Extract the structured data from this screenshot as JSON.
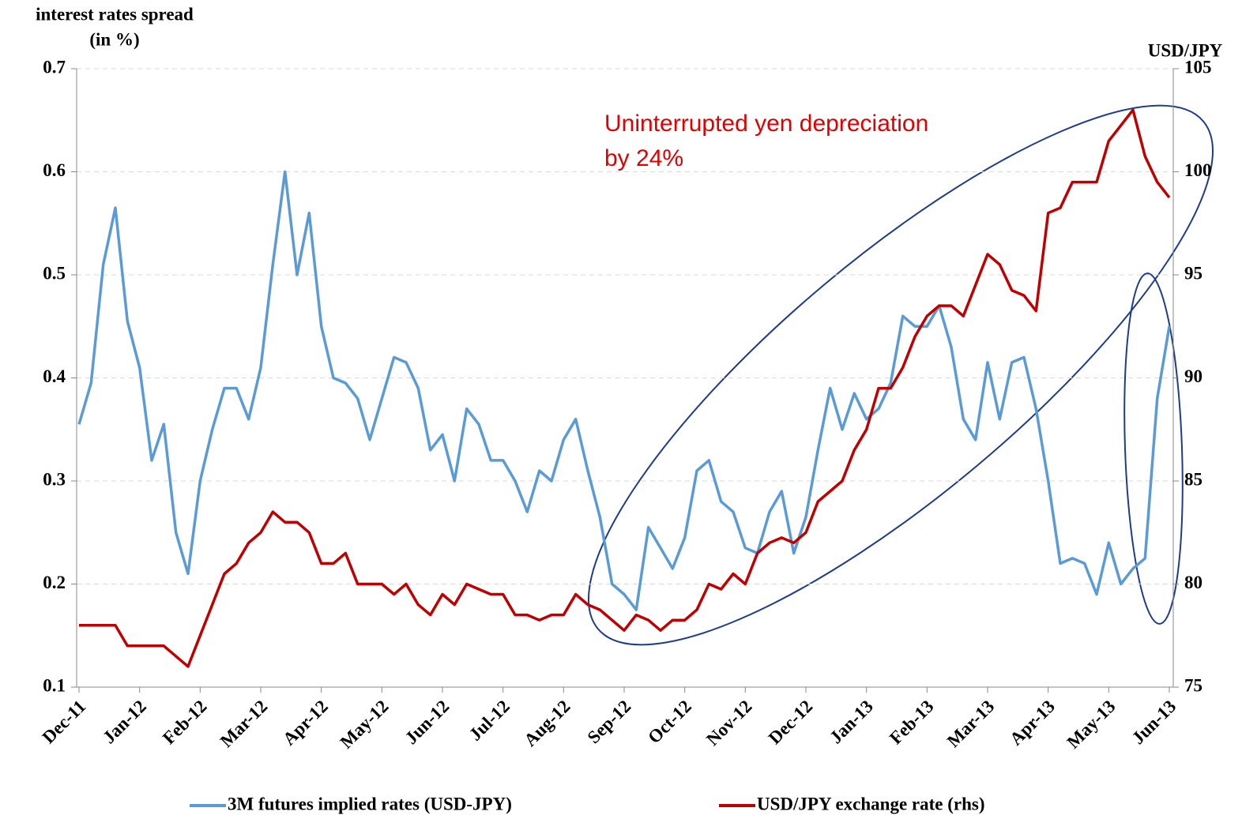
{
  "chart_data": {
    "type": "line",
    "ylabel": "interest rates spread",
    "ylabel_unit": "(in %)",
    "y2label": "USD/JPY",
    "annotation": [
      "Uninterrupted yen depreciation",
      "by 24%"
    ],
    "x": [
      0,
      0.2,
      0.4,
      0.6,
      0.8,
      1,
      1.2,
      1.4,
      1.6,
      1.8,
      2,
      2.2,
      2.4,
      2.6,
      2.8,
      3,
      3.2,
      3.4,
      3.6,
      3.8,
      4,
      4.2,
      4.4,
      4.6,
      4.8,
      5,
      5.2,
      5.4,
      5.6,
      5.8,
      6,
      6.2,
      6.4,
      6.6,
      6.8,
      7,
      7.2,
      7.4,
      7.6,
      7.8,
      8,
      8.2,
      8.4,
      8.6,
      8.8,
      9,
      9.2,
      9.4,
      9.6,
      9.8,
      10,
      10.2,
      10.4,
      10.6,
      10.8,
      11,
      11.2,
      11.4,
      11.6,
      11.8,
      12,
      12.2,
      12.4,
      12.6,
      12.8,
      13,
      13.2,
      13.4,
      13.6,
      13.8,
      14,
      14.2,
      14.4,
      14.6,
      14.8,
      15,
      15.2,
      15.4,
      15.6,
      15.8,
      16,
      16.2,
      16.4,
      16.6,
      16.8,
      17,
      17.2,
      17.4,
      17.6,
      17.8,
      18
    ],
    "series": [
      {
        "name": "3M futures implied rates (USD-JPY)",
        "color": "#5b9bd5",
        "values": [
          0.355,
          0.395,
          0.51,
          0.565,
          0.455,
          0.41,
          0.32,
          0.355,
          0.25,
          0.21,
          0.3,
          0.35,
          0.39,
          0.39,
          0.36,
          0.41,
          0.51,
          0.6,
          0.5,
          0.56,
          0.45,
          0.4,
          0.395,
          0.38,
          0.34,
          0.38,
          0.42,
          0.415,
          0.39,
          0.33,
          0.345,
          0.3,
          0.37,
          0.355,
          0.32,
          0.32,
          0.3,
          0.27,
          0.31,
          0.3,
          0.34,
          0.36,
          0.31,
          0.265,
          0.2,
          0.19,
          0.175,
          0.255,
          0.235,
          0.215,
          0.245,
          0.31,
          0.32,
          0.28,
          0.27,
          0.235,
          0.23,
          0.27,
          0.29,
          0.23,
          0.265,
          0.33,
          0.39,
          0.35,
          0.385,
          0.36,
          0.37,
          0.395,
          0.46,
          0.45,
          0.45,
          0.47,
          0.43,
          0.36,
          0.34,
          0.415,
          0.36,
          0.415,
          0.42,
          0.37,
          0.3,
          0.22,
          0.225,
          0.22,
          0.19,
          0.24,
          0.2,
          0.215,
          0.225,
          0.38,
          0.45
        ]
      },
      {
        "name": "USD/JPY exchange rate (rhs)",
        "color": "#c00000",
        "axis": "y2",
        "values": [
          78,
          78,
          78,
          78,
          77,
          77,
          77,
          77,
          76.5,
          76,
          77.5,
          79,
          80.5,
          81,
          82,
          82.5,
          83.5,
          83,
          83,
          82.5,
          81,
          81,
          81.5,
          80,
          80,
          80,
          79.5,
          80,
          79,
          78.5,
          79.5,
          79,
          80,
          79.75,
          79.5,
          79.5,
          78.5,
          78.5,
          78.25,
          78.5,
          78.5,
          79.5,
          79,
          78.75,
          78.25,
          77.75,
          78.5,
          78.25,
          77.75,
          78.25,
          78.25,
          78.75,
          80,
          79.75,
          80.5,
          80,
          81.5,
          82,
          82.25,
          82,
          82.5,
          84,
          84.5,
          85,
          86.5,
          87.5,
          89.5,
          89.5,
          90.5,
          92,
          93,
          93.5,
          93.5,
          93,
          94.5,
          96,
          95.5,
          94.25,
          94,
          93.25,
          98,
          98.25,
          99.5,
          99.5,
          99.5,
          101.5,
          102.25,
          103,
          100.75,
          99.5,
          98.75
        ]
      }
    ],
    "xlim": [
      0,
      18
    ],
    "xticks": [
      {
        "value": 0,
        "label": "Dec-11"
      },
      {
        "value": 1,
        "label": "Jan-12"
      },
      {
        "value": 2,
        "label": "Feb-12"
      },
      {
        "value": 3,
        "label": "Mar-12"
      },
      {
        "value": 4,
        "label": "Apr-12"
      },
      {
        "value": 5,
        "label": "May-12"
      },
      {
        "value": 6,
        "label": "Jun-12"
      },
      {
        "value": 7,
        "label": "Jul-12"
      },
      {
        "value": 8,
        "label": "Aug-12"
      },
      {
        "value": 9,
        "label": "Sep-12"
      },
      {
        "value": 10,
        "label": "Oct-12"
      },
      {
        "value": 11,
        "label": "Nov-12"
      },
      {
        "value": 12,
        "label": "Dec-12"
      },
      {
        "value": 13,
        "label": "Jan-13"
      },
      {
        "value": 14,
        "label": "Feb-13"
      },
      {
        "value": 15,
        "label": "Mar-13"
      },
      {
        "value": 16,
        "label": "Apr-13"
      },
      {
        "value": 17,
        "label": "May-13"
      },
      {
        "value": 18,
        "label": "Jun-13"
      }
    ],
    "ylim": [
      0.1,
      0.7
    ],
    "yticks": [
      0.1,
      0.2,
      0.3,
      0.4,
      0.5,
      0.6,
      0.7
    ],
    "y2lim": [
      75,
      105
    ],
    "y2ticks": [
      75,
      80,
      85,
      90,
      95,
      100,
      105
    ],
    "grid": true
  }
}
